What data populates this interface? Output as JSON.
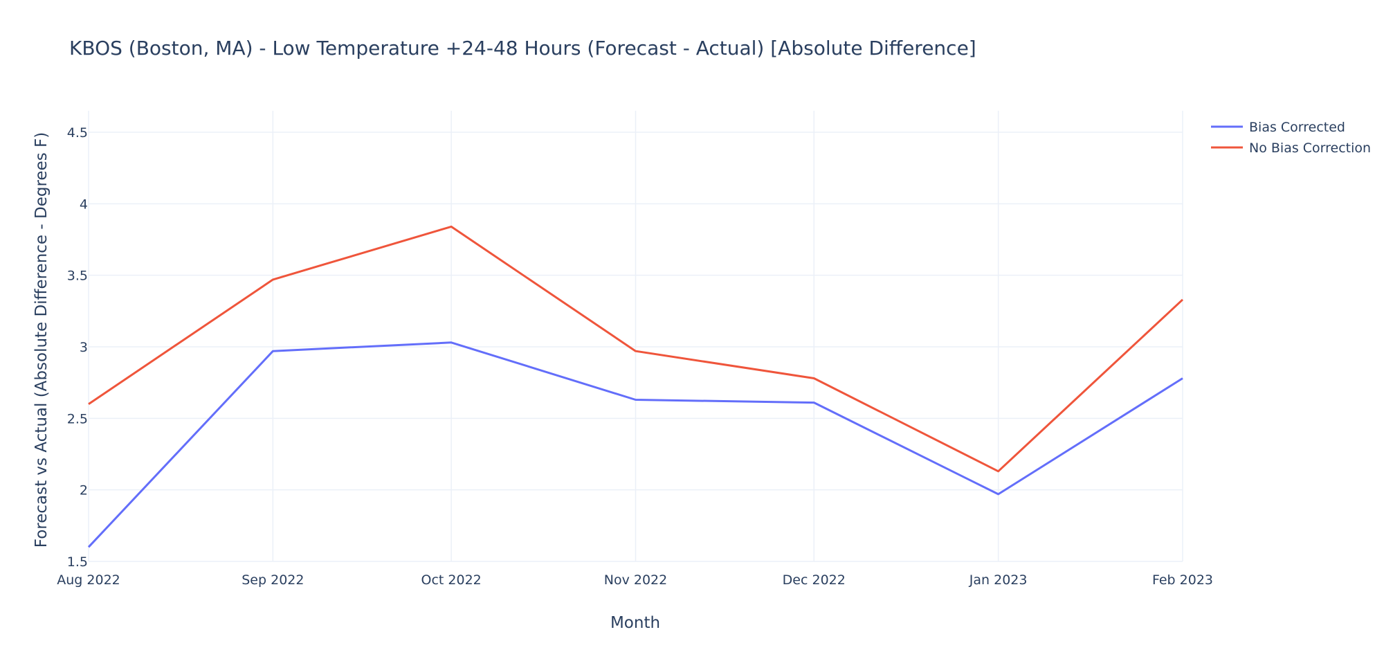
{
  "chart_data": {
    "type": "line",
    "title": "KBOS (Boston, MA) - Low Temperature +24-48 Hours (Forecast - Actual) [Absolute Difference]",
    "xlabel": "Month",
    "ylabel": "Forecast vs Actual (Absolute Difference - Degrees F)",
    "categories": [
      "Aug 2022",
      "Sep 2022",
      "Oct 2022",
      "Nov 2022",
      "Dec 2022",
      "Jan 2023",
      "Feb 2023"
    ],
    "x_dates": [
      "2022-08-01",
      "2022-09-01",
      "2022-10-01",
      "2022-11-01",
      "2022-12-01",
      "2023-01-01",
      "2023-02-01"
    ],
    "ylim": [
      1.5,
      4.65
    ],
    "yticks": [
      1.5,
      2,
      2.5,
      3,
      3.5,
      4,
      4.5
    ],
    "ytick_labels": [
      "1.5",
      "2",
      "2.5",
      "3",
      "3.5",
      "4",
      "4.5"
    ],
    "grid": true,
    "legend_position": "top-right",
    "series": [
      {
        "name": "Bias Corrected",
        "color": "#636efa",
        "values": [
          1.6,
          2.97,
          3.03,
          2.63,
          2.61,
          1.97,
          2.78
        ]
      },
      {
        "name": "No Bias Correction",
        "color": "#ef553b",
        "values": [
          2.6,
          3.47,
          3.84,
          2.97,
          2.78,
          2.13,
          3.33
        ]
      }
    ]
  }
}
